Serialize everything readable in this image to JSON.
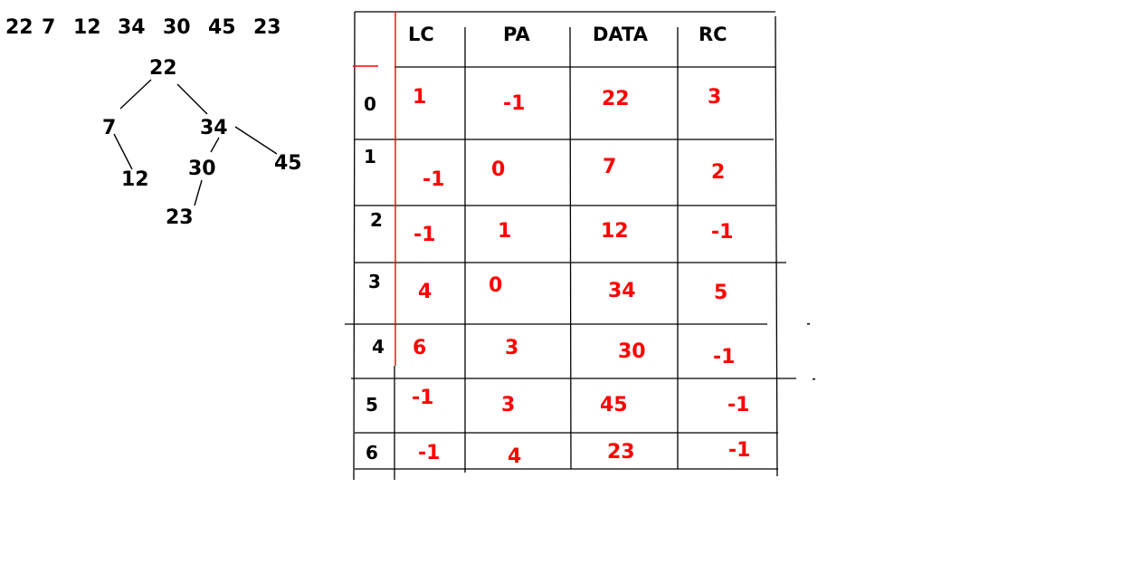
{
  "sequence": [
    "22",
    "7",
    "12",
    "34",
    "30",
    "45",
    "23"
  ],
  "tree": {
    "nodes": [
      "22",
      "7",
      "34",
      "12",
      "30",
      "45",
      "23"
    ]
  },
  "table": {
    "headers": [
      "LC",
      "PA",
      "DATA",
      "RC"
    ],
    "rows": [
      {
        "index": "0",
        "lc": "1",
        "pa": "-1",
        "data": "22",
        "rc": "3"
      },
      {
        "index": "1",
        "lc": "-1",
        "pa": "0",
        "data": "7",
        "rc": "2"
      },
      {
        "index": "2",
        "lc": "-1",
        "pa": "1",
        "data": "12",
        "rc": "-1"
      },
      {
        "index": "3",
        "lc": "4",
        "pa": "0",
        "data": "34",
        "rc": "5"
      },
      {
        "index": "4",
        "lc": "6",
        "pa": "3",
        "data": "30",
        "rc": "-1"
      },
      {
        "index": "5",
        "lc": "-1",
        "pa": "3",
        "data": "45",
        "rc": "-1"
      },
      {
        "index": "6",
        "lc": "-1",
        "pa": "4",
        "data": "23",
        "rc": "-1"
      }
    ]
  },
  "colors": {
    "ink": "#000000",
    "annotation": "#ff0000"
  }
}
